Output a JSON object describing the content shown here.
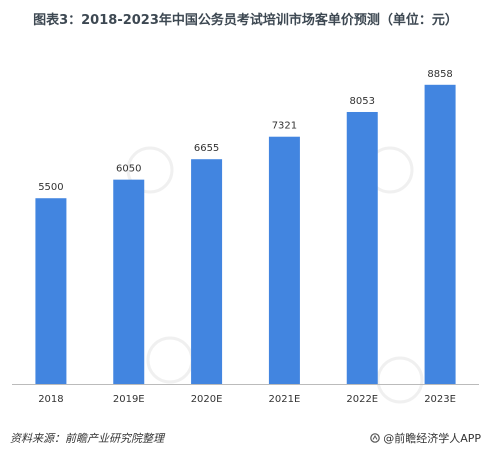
{
  "title": "图表3：2018-2023年中国公务员考试培训市场客单价预测（单位：元）",
  "footer": {
    "source": "资料来源：前瞻产业研究院整理",
    "brand": "@前瞻经济学人APP"
  },
  "colors": {
    "bar": "#4285e0",
    "axis": "#bbbbbb",
    "watermark": "#e6e6e6"
  },
  "chart_data": {
    "type": "bar",
    "title": "图表3：2018-2023年中国公务员考试培训市场客单价预测（单位：元）",
    "xlabel": "",
    "ylabel": "",
    "categories": [
      "2018",
      "2019E",
      "2020E",
      "2021E",
      "2022E",
      "2023E"
    ],
    "values": [
      5500,
      6050,
      6655,
      7321,
      8053,
      8858
    ],
    "ylim": [
      0,
      9000
    ],
    "grid": false,
    "data_labels": true
  }
}
